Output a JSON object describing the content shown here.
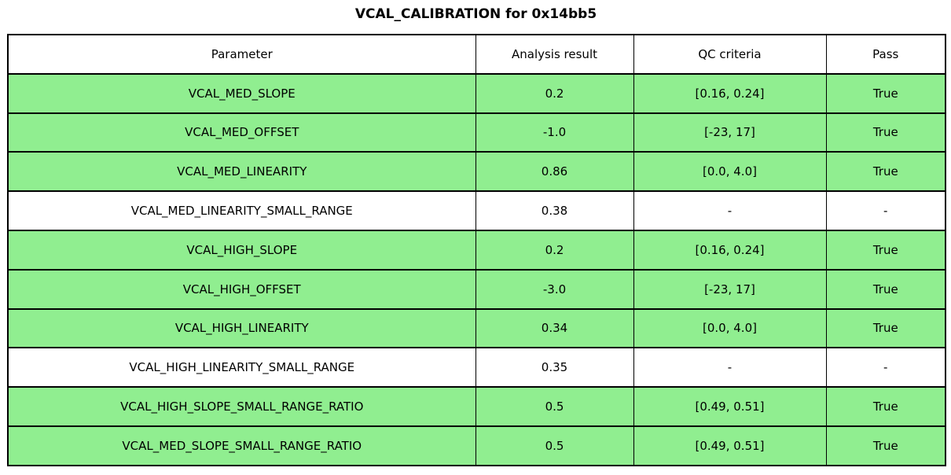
{
  "title": "VCAL_CALIBRATION for 0x14bb5",
  "colors": {
    "pass_row_green": "#90EE90",
    "neutral_row_white": "#ffffff",
    "border": "#000000",
    "text": "#000000",
    "background": "#ffffff"
  },
  "table": {
    "columns": [
      "Parameter",
      "Analysis result",
      "QC criteria",
      "Pass"
    ],
    "rows": [
      {
        "parameter": "VCAL_MED_SLOPE",
        "analysis_result": "0.2",
        "qc_criteria": "[0.16, 0.24]",
        "pass": "True",
        "highlight": true
      },
      {
        "parameter": "VCAL_MED_OFFSET",
        "analysis_result": "-1.0",
        "qc_criteria": "[-23, 17]",
        "pass": "True",
        "highlight": true
      },
      {
        "parameter": "VCAL_MED_LINEARITY",
        "analysis_result": "0.86",
        "qc_criteria": "[0.0, 4.0]",
        "pass": "True",
        "highlight": true
      },
      {
        "parameter": "VCAL_MED_LINEARITY_SMALL_RANGE",
        "analysis_result": "0.38",
        "qc_criteria": "-",
        "pass": "-",
        "highlight": false
      },
      {
        "parameter": "VCAL_HIGH_SLOPE",
        "analysis_result": "0.2",
        "qc_criteria": "[0.16, 0.24]",
        "pass": "True",
        "highlight": true
      },
      {
        "parameter": "VCAL_HIGH_OFFSET",
        "analysis_result": "-3.0",
        "qc_criteria": "[-23, 17]",
        "pass": "True",
        "highlight": true
      },
      {
        "parameter": "VCAL_HIGH_LINEARITY",
        "analysis_result": "0.34",
        "qc_criteria": "[0.0, 4.0]",
        "pass": "True",
        "highlight": true
      },
      {
        "parameter": "VCAL_HIGH_LINEARITY_SMALL_RANGE",
        "analysis_result": "0.35",
        "qc_criteria": "-",
        "pass": "-",
        "highlight": false
      },
      {
        "parameter": "VCAL_HIGH_SLOPE_SMALL_RANGE_RATIO",
        "analysis_result": "0.5",
        "qc_criteria": "[0.49, 0.51]",
        "pass": "True",
        "highlight": true
      },
      {
        "parameter": "VCAL_MED_SLOPE_SMALL_RANGE_RATIO",
        "analysis_result": "0.5",
        "qc_criteria": "[0.49, 0.51]",
        "pass": "True",
        "highlight": true
      }
    ]
  },
  "chart_data": {
    "type": "table",
    "title": "VCAL_CALIBRATION for 0x14bb5",
    "columns": [
      "Parameter",
      "Analysis result",
      "QC criteria",
      "Pass"
    ],
    "rows": [
      [
        "VCAL_MED_SLOPE",
        "0.2",
        "[0.16, 0.24]",
        "True"
      ],
      [
        "VCAL_MED_OFFSET",
        "-1.0",
        "[-23, 17]",
        "True"
      ],
      [
        "VCAL_MED_LINEARITY",
        "0.86",
        "[0.0, 4.0]",
        "True"
      ],
      [
        "VCAL_MED_LINEARITY_SMALL_RANGE",
        "0.38",
        "-",
        "-"
      ],
      [
        "VCAL_HIGH_SLOPE",
        "0.2",
        "[0.16, 0.24]",
        "True"
      ],
      [
        "VCAL_HIGH_OFFSET",
        "-3.0",
        "[-23, 17]",
        "True"
      ],
      [
        "VCAL_HIGH_LINEARITY",
        "0.34",
        "[0.0, 4.0]",
        "True"
      ],
      [
        "VCAL_HIGH_LINEARITY_SMALL_RANGE",
        "0.35",
        "-",
        "-"
      ],
      [
        "VCAL_HIGH_SLOPE_SMALL_RANGE_RATIO",
        "0.5",
        "[0.49, 0.51]",
        "True"
      ],
      [
        "VCAL_MED_SLOPE_SMALL_RANGE_RATIO",
        "0.5",
        "[0.49, 0.51]",
        "True"
      ]
    ],
    "row_highlighted_green": [
      true,
      true,
      true,
      false,
      true,
      true,
      true,
      false,
      true,
      true
    ],
    "layout": {
      "grid": true,
      "header_background": "#ffffff",
      "pass_background": "#90EE90"
    }
  }
}
